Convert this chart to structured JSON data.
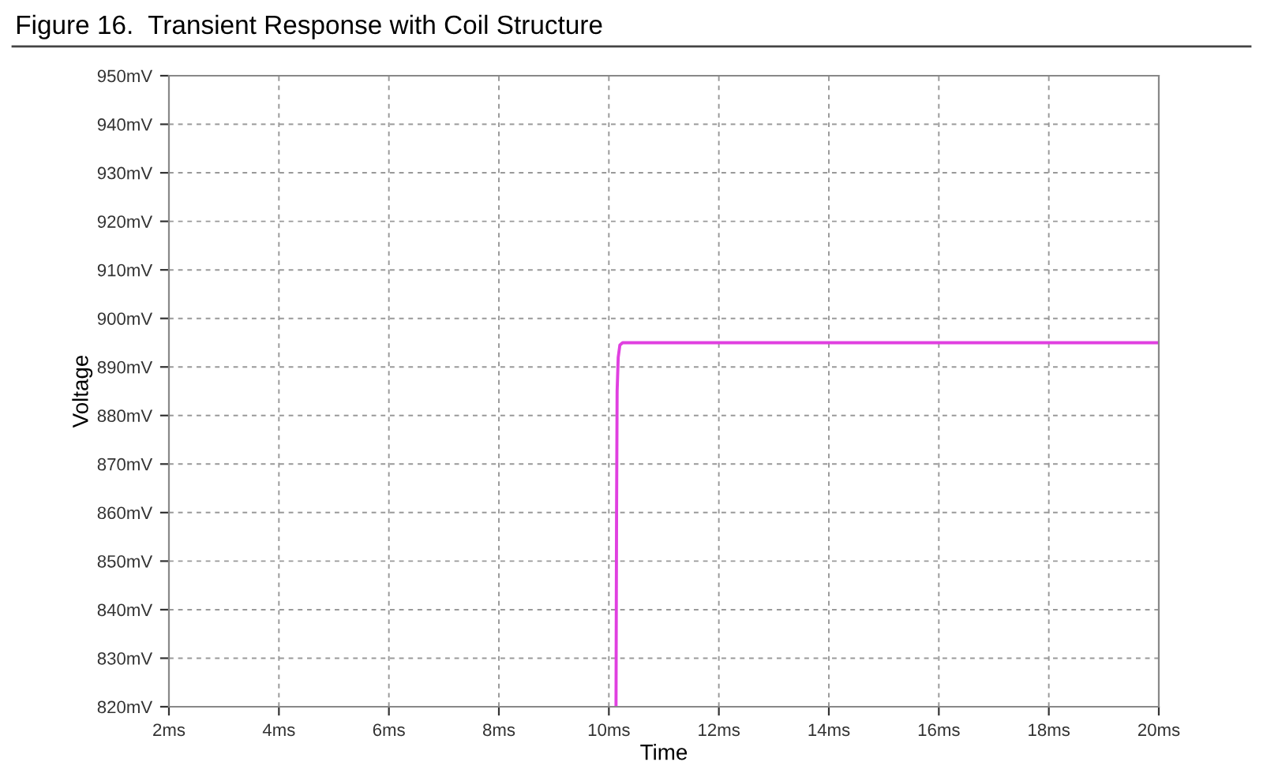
{
  "chart_data": {
    "type": "line",
    "title": "Figure 16.  Transient Response with Coil Structure",
    "xlabel": "Time",
    "ylabel": "Voltage",
    "series": [
      {
        "color": "#e040e0",
        "x": [
          10.13,
          10.14,
          10.15,
          10.17,
          10.2,
          10.25,
          20
        ],
        "values": [
          820,
          860,
          885,
          892,
          894.5,
          895,
          895
        ]
      }
    ],
    "xlim": [
      2,
      20
    ],
    "ylim": [
      820,
      950
    ],
    "xticks": [
      {
        "value": 2,
        "label": "2ms"
      },
      {
        "value": 4,
        "label": "4ms"
      },
      {
        "value": 6,
        "label": "6ms"
      },
      {
        "value": 8,
        "label": "8ms"
      },
      {
        "value": 10,
        "label": "10ms"
      },
      {
        "value": 12,
        "label": "12ms"
      },
      {
        "value": 14,
        "label": "14ms"
      },
      {
        "value": 16,
        "label": "16ms"
      },
      {
        "value": 18,
        "label": "18ms"
      },
      {
        "value": 20,
        "label": "20ms"
      }
    ],
    "yticks": [
      {
        "value": 820,
        "label": "820mV"
      },
      {
        "value": 830,
        "label": "830mV"
      },
      {
        "value": 840,
        "label": "840mV"
      },
      {
        "value": 850,
        "label": "850mV"
      },
      {
        "value": 860,
        "label": "860mV"
      },
      {
        "value": 870,
        "label": "870mV"
      },
      {
        "value": 880,
        "label": "880mV"
      },
      {
        "value": 890,
        "label": "890mV"
      },
      {
        "value": 900,
        "label": "900mV"
      },
      {
        "value": 910,
        "label": "910mV"
      },
      {
        "value": 920,
        "label": "920mV"
      },
      {
        "value": 930,
        "label": "930mV"
      },
      {
        "value": 940,
        "label": "940mV"
      },
      {
        "value": 950,
        "label": "950mV"
      }
    ],
    "grid": true,
    "line_style": "solid",
    "marker": "none"
  }
}
